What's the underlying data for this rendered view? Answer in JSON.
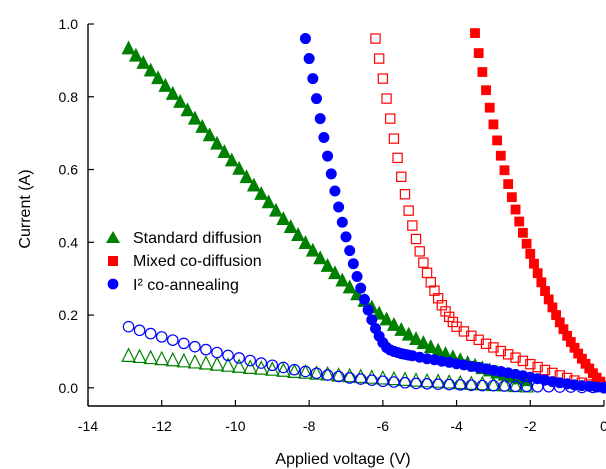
{
  "chart_data": {
    "type": "scatter",
    "title": "",
    "xlabel": "Applied voltage (V)",
    "ylabel": "Current (A)",
    "xlim": [
      -14,
      0
    ],
    "ylim": [
      -0.05,
      1.0
    ],
    "grid": false,
    "legend_position": "left-middle",
    "x_ticks": [
      {
        "value": -14,
        "label": "-14"
      },
      {
        "value": -12,
        "label": "-12"
      },
      {
        "value": -10,
        "label": "-10"
      },
      {
        "value": -8,
        "label": "-8"
      },
      {
        "value": -6,
        "label": "-6"
      },
      {
        "value": -4,
        "label": "-4"
      },
      {
        "value": -2,
        "label": "-2"
      },
      {
        "value": 0,
        "label": "0"
      }
    ],
    "y_ticks": [
      {
        "value": 0.0,
        "label": "0.0"
      },
      {
        "value": 0.2,
        "label": "0.2"
      },
      {
        "value": 0.4,
        "label": "0.4"
      },
      {
        "value": 0.6,
        "label": "0.6"
      },
      {
        "value": 0.8,
        "label": "0.8"
      },
      {
        "value": 1.0,
        "label": "1.0"
      }
    ],
    "legend": [
      {
        "label": "Standard diffusion",
        "marker": "triangle",
        "color": "#008000"
      },
      {
        "label": "Mixed co-diffusion",
        "marker": "square",
        "color": "#ff0000"
      },
      {
        "label": "I² co-annealing",
        "marker": "circle",
        "color": "#0000ff"
      }
    ],
    "series": [
      {
        "name": "Standard diffusion",
        "marker": "triangle",
        "color": "#008000",
        "filled": true,
        "x": [
          -12.9,
          -12.7,
          -12.5,
          -12.3,
          -12.1,
          -11.9,
          -11.7,
          -11.5,
          -11.3,
          -11.1,
          -10.9,
          -10.7,
          -10.5,
          -10.3,
          -10.1,
          -9.9,
          -9.7,
          -9.5,
          -9.3,
          -9.1,
          -8.9,
          -8.7,
          -8.5,
          -8.3,
          -8.1,
          -7.9,
          -7.7,
          -7.5,
          -7.3,
          -7.1,
          -6.9,
          -6.7,
          -6.5,
          -6.3,
          -6.1,
          -5.9,
          -5.7,
          -5.5,
          -5.3,
          -5.1,
          -4.9,
          -4.7,
          -4.5,
          -4.3,
          -4.1,
          -3.9,
          -3.7,
          -3.5,
          -3.3,
          -3.1,
          -2.9,
          -2.7,
          -2.5,
          -2.3,
          -2.1
        ],
        "y": [
          0.935,
          0.915,
          0.895,
          0.874,
          0.853,
          0.832,
          0.81,
          0.788,
          0.765,
          0.742,
          0.719,
          0.696,
          0.673,
          0.65,
          0.627,
          0.604,
          0.581,
          0.558,
          0.535,
          0.512,
          0.489,
          0.466,
          0.444,
          0.422,
          0.4,
          0.379,
          0.358,
          0.337,
          0.317,
          0.297,
          0.278,
          0.259,
          0.241,
          0.223,
          0.206,
          0.19,
          0.175,
          0.161,
          0.148,
          0.136,
          0.125,
          0.114,
          0.104,
          0.095,
          0.086,
          0.078,
          0.07,
          0.063,
          0.056,
          0.05,
          0.044,
          0.038,
          0.033,
          0.028,
          0.023
        ]
      },
      {
        "name": "Mixed co-diffusion",
        "marker": "square",
        "color": "#ff0000",
        "filled": true,
        "x": [
          -3.5,
          -3.4,
          -3.3,
          -3.2,
          -3.1,
          -3.0,
          -2.9,
          -2.8,
          -2.7,
          -2.6,
          -2.5,
          -2.4,
          -2.3,
          -2.2,
          -2.1,
          -2.0,
          -1.9,
          -1.8,
          -1.7,
          -1.6,
          -1.5,
          -1.4,
          -1.3,
          -1.2,
          -1.1,
          -1.0,
          -0.9,
          -0.8,
          -0.7,
          -0.6,
          -0.5,
          -0.4,
          -0.3,
          -0.2,
          -0.1,
          0.0
        ],
        "y": [
          0.975,
          0.92,
          0.868,
          0.818,
          0.77,
          0.724,
          0.68,
          0.638,
          0.598,
          0.56,
          0.524,
          0.49,
          0.457,
          0.426,
          0.396,
          0.368,
          0.341,
          0.315,
          0.29,
          0.266,
          0.243,
          0.221,
          0.2,
          0.18,
          0.161,
          0.143,
          0.126,
          0.11,
          0.094,
          0.08,
          0.066,
          0.053,
          0.04,
          0.028,
          0.017,
          0.006
        ]
      },
      {
        "name": "Mixed co-diffusion (open)",
        "marker": "square",
        "color": "#ff0000",
        "filled": false,
        "x": [
          -6.2,
          -6.1,
          -6.0,
          -5.9,
          -5.8,
          -5.7,
          -5.6,
          -5.5,
          -5.4,
          -5.3,
          -5.2,
          -5.1,
          -5.0,
          -4.9,
          -4.8,
          -4.7,
          -4.6,
          -4.5,
          -4.4,
          -4.3,
          -4.2,
          -4.1,
          -4.0,
          -3.8,
          -3.6,
          -3.4,
          -3.2,
          -3.0,
          -2.8,
          -2.6,
          -2.4,
          -2.2,
          -2.0,
          -1.8,
          -1.6,
          -1.4,
          -1.2,
          -1.0,
          -0.8,
          -0.6,
          -0.4,
          -0.2,
          0.0
        ],
        "y": [
          0.96,
          0.905,
          0.85,
          0.795,
          0.74,
          0.685,
          0.632,
          0.58,
          0.532,
          0.487,
          0.446,
          0.409,
          0.375,
          0.344,
          0.316,
          0.29,
          0.267,
          0.246,
          0.227,
          0.21,
          0.195,
          0.181,
          0.168,
          0.155,
          0.143,
          0.132,
          0.121,
          0.111,
          0.101,
          0.092,
          0.083,
          0.074,
          0.065,
          0.057,
          0.049,
          0.041,
          0.034,
          0.027,
          0.02,
          0.014,
          0.009,
          0.005,
          0.002
        ]
      },
      {
        "name": "I² co-annealing",
        "marker": "circle",
        "color": "#0000ff",
        "filled": true,
        "x": [
          -8.1,
          -8.0,
          -7.9,
          -7.8,
          -7.7,
          -7.6,
          -7.5,
          -7.4,
          -7.3,
          -7.2,
          -7.1,
          -7.0,
          -6.9,
          -6.8,
          -6.7,
          -6.6,
          -6.5,
          -6.4,
          -6.3,
          -6.2,
          -6.1,
          -6.0,
          -5.9,
          -5.8,
          -5.7,
          -5.6,
          -5.5,
          -5.4,
          -5.3,
          -5.2,
          -5.0,
          -4.8,
          -4.6,
          -4.4,
          -4.2,
          -4.0,
          -3.8,
          -3.6,
          -3.4,
          -3.2,
          -3.0,
          -2.8,
          -2.6,
          -2.4,
          -2.2,
          -2.0,
          -1.8,
          -1.6,
          -1.4,
          -1.2,
          -1.0,
          -0.8,
          -0.6,
          -0.4,
          -0.2,
          0.0
        ],
        "y": [
          0.96,
          0.905,
          0.85,
          0.795,
          0.74,
          0.688,
          0.637,
          0.588,
          0.541,
          0.497,
          0.455,
          0.415,
          0.377,
          0.341,
          0.306,
          0.274,
          0.243,
          0.214,
          0.187,
          0.163,
          0.142,
          0.124,
          0.111,
          0.104,
          0.1,
          0.097,
          0.094,
          0.092,
          0.09,
          0.088,
          0.084,
          0.08,
          0.077,
          0.073,
          0.07,
          0.066,
          0.063,
          0.059,
          0.056,
          0.052,
          0.048,
          0.045,
          0.041,
          0.037,
          0.033,
          0.029,
          0.025,
          0.021,
          0.017,
          0.014,
          0.011,
          0.008,
          0.006,
          0.004,
          0.002,
          0.001
        ]
      },
      {
        "name": "Standard diffusion (open)",
        "marker": "triangle",
        "color": "#008000",
        "filled": false,
        "x": [
          -12.9,
          -12.6,
          -12.3,
          -12.0,
          -11.7,
          -11.4,
          -11.1,
          -10.8,
          -10.5,
          -10.2,
          -9.9,
          -9.6,
          -9.3,
          -9.0,
          -8.7,
          -8.4,
          -8.1,
          -7.8,
          -7.5,
          -7.2,
          -6.9,
          -6.6,
          -6.3,
          -6.0,
          -5.7,
          -5.4,
          -5.1,
          -4.8,
          -4.5,
          -4.2,
          -3.9,
          -3.6,
          -3.3,
          -3.0,
          -2.7,
          -2.4,
          -2.1
        ],
        "y": [
          0.09,
          0.087,
          0.084,
          0.081,
          0.078,
          0.075,
          0.072,
          0.069,
          0.066,
          0.063,
          0.06,
          0.057,
          0.055,
          0.052,
          0.049,
          0.046,
          0.044,
          0.041,
          0.039,
          0.036,
          0.034,
          0.032,
          0.03,
          0.028,
          0.026,
          0.024,
          0.022,
          0.02,
          0.019,
          0.017,
          0.015,
          0.013,
          0.012,
          0.01,
          0.009,
          0.007,
          0.006
        ]
      },
      {
        "name": "I² co-annealing (open)",
        "marker": "circle",
        "color": "#0000ff",
        "filled": false,
        "x": [
          -12.9,
          -12.6,
          -12.3,
          -12.0,
          -11.7,
          -11.4,
          -11.1,
          -10.8,
          -10.5,
          -10.2,
          -9.9,
          -9.6,
          -9.3,
          -9.0,
          -8.7,
          -8.4,
          -8.1,
          -7.8,
          -7.5,
          -7.2,
          -6.9,
          -6.6,
          -6.3,
          -6.0,
          -5.7,
          -5.4,
          -5.1,
          -4.8,
          -4.5,
          -4.2,
          -3.9,
          -3.6,
          -3.3,
          -3.0,
          -2.7,
          -2.4,
          -2.1,
          -1.8,
          -1.5,
          -1.2,
          -0.9,
          -0.6,
          -0.3,
          0.0
        ],
        "y": [
          0.168,
          0.158,
          0.149,
          0.14,
          0.131,
          0.122,
          0.113,
          0.105,
          0.097,
          0.089,
          0.082,
          0.075,
          0.068,
          0.062,
          0.056,
          0.05,
          0.045,
          0.04,
          0.035,
          0.031,
          0.027,
          0.024,
          0.021,
          0.018,
          0.016,
          0.014,
          0.012,
          0.011,
          0.01,
          0.009,
          0.008,
          0.007,
          0.006,
          0.006,
          0.005,
          0.004,
          0.004,
          0.003,
          0.003,
          0.002,
          0.002,
          0.001,
          0.001,
          0.0
        ]
      }
    ]
  }
}
